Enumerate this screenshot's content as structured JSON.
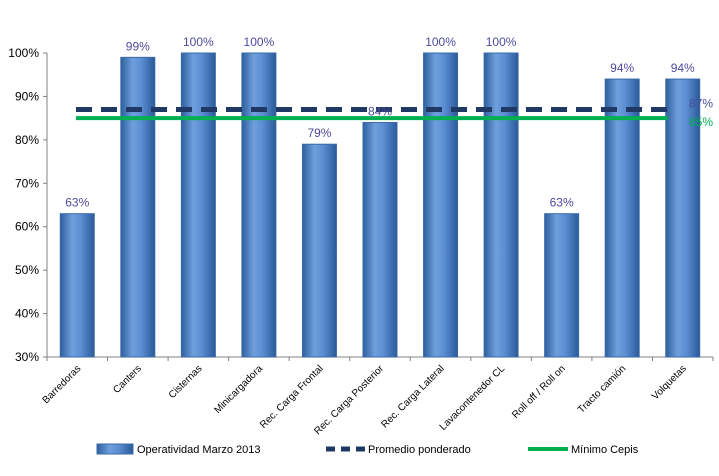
{
  "chart_data": {
    "type": "bar",
    "categories": [
      "Barredoras",
      "Canters",
      "Cisternas",
      "Minicargadora",
      "Rec. Carga Frontal",
      "Rec. Carga Posterior",
      "Rec. Carga Lateral",
      "Lavacontenedor CL",
      "Roll off / Roll on",
      "Tracto camión",
      "Volquetas"
    ],
    "series": [
      {
        "name": "Operatividad Marzo 2013",
        "type": "bar",
        "values": [
          63,
          99,
          100,
          100,
          79,
          84,
          100,
          100,
          63,
          94,
          94
        ],
        "labels": [
          "63%",
          "99%",
          "100%",
          "100%",
          "79%",
          "84%",
          "100%",
          "100%",
          "63%",
          "94%",
          "94%"
        ],
        "color": "#4f81bd"
      },
      {
        "name": "Promedio ponderado",
        "type": "line",
        "style": "dashed",
        "value": 87,
        "label": "87%",
        "color": "#1f3864"
      },
      {
        "name": "Mínimo Cepis",
        "type": "line",
        "style": "solid",
        "value": 85,
        "label": "85%",
        "color": "#00b050"
      }
    ],
    "ylim": [
      30,
      100
    ],
    "yticks": [
      "30%",
      "40%",
      "50%",
      "60%",
      "70%",
      "80%",
      "90%",
      "100%"
    ],
    "grid": false,
    "legend_position": "bottom",
    "title": "",
    "xlabel": "",
    "ylabel": ""
  }
}
